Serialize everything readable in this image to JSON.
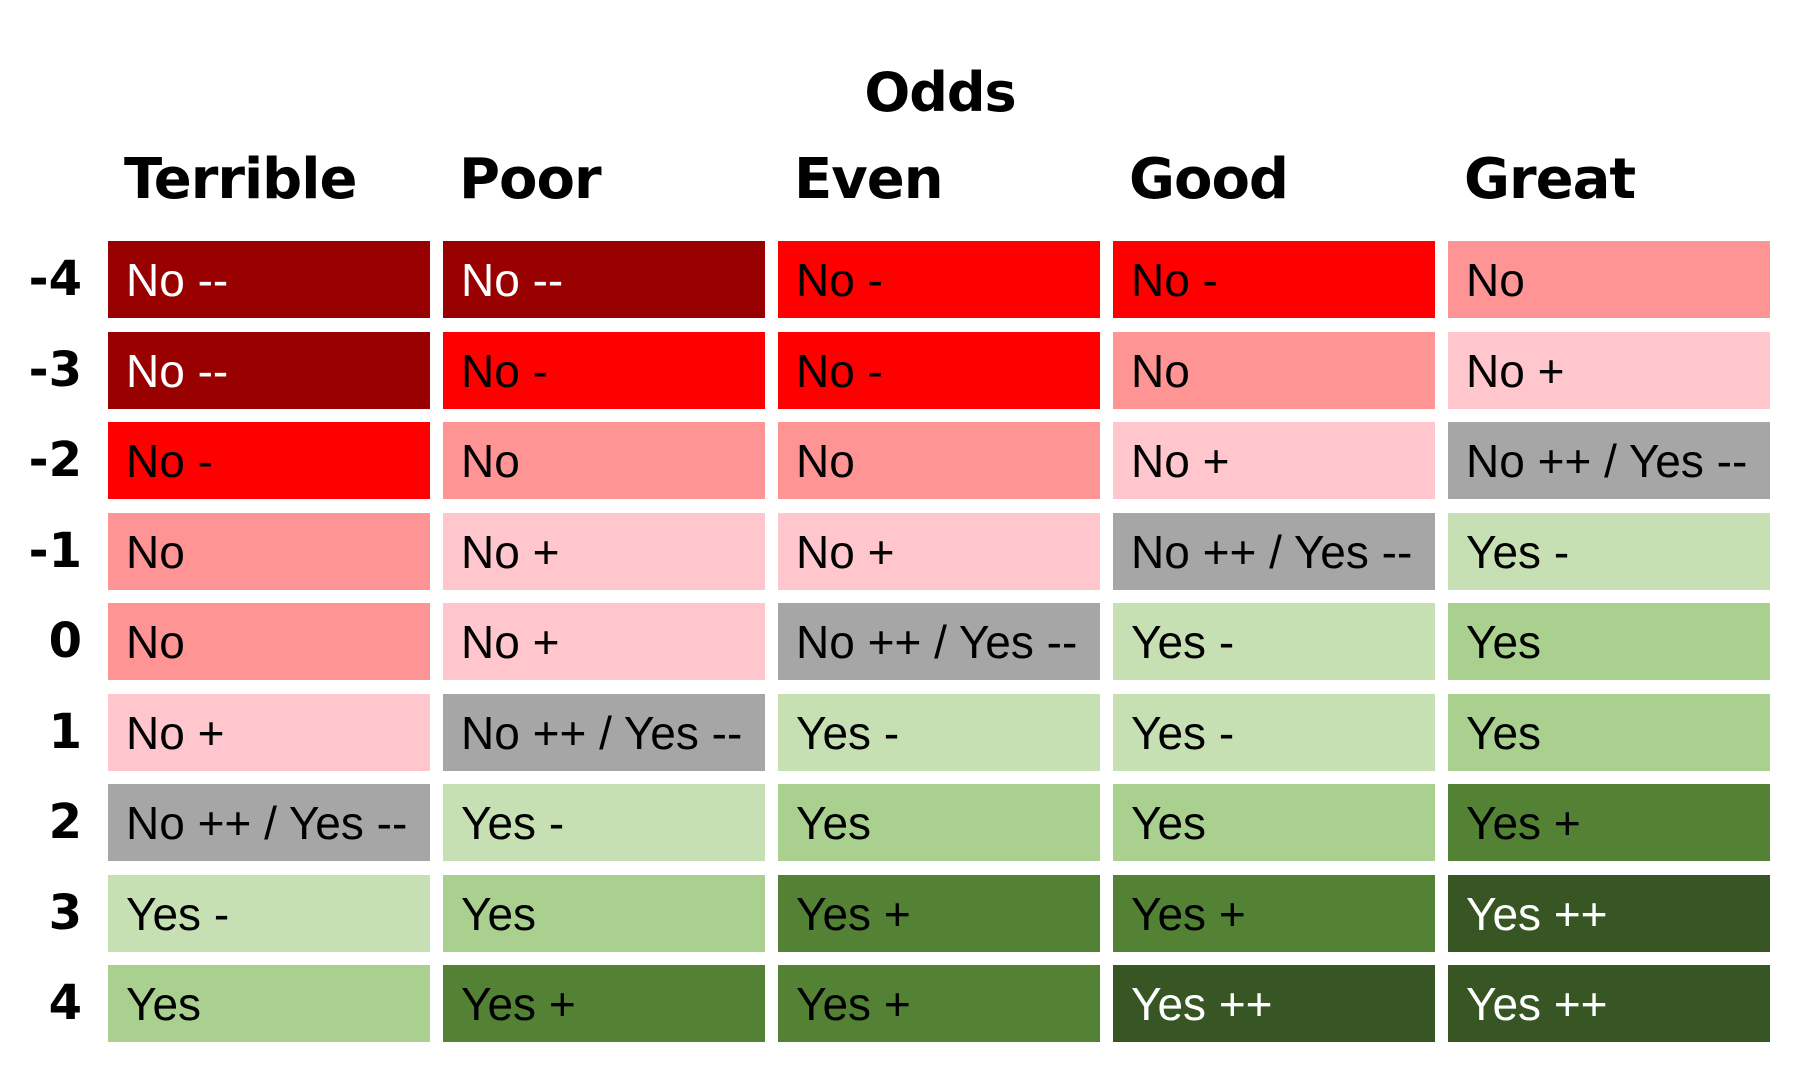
{
  "title": "Odds",
  "columns": [
    "Terrible",
    "Poor",
    "Even",
    "Good",
    "Great"
  ],
  "rows": [
    {
      "label": "-4",
      "cells": [
        "No --",
        "No --",
        "No -",
        "No -",
        "No"
      ]
    },
    {
      "label": "-3",
      "cells": [
        "No --",
        "No -",
        "No -",
        "No",
        "No +"
      ]
    },
    {
      "label": "-2",
      "cells": [
        "No -",
        "No",
        "No",
        "No +",
        "No ++ / Yes --"
      ]
    },
    {
      "label": "-1",
      "cells": [
        "No",
        "No +",
        "No +",
        "No ++ / Yes --",
        "Yes -"
      ]
    },
    {
      "label": "0",
      "cells": [
        "No",
        "No +",
        "No ++ / Yes --",
        "Yes -",
        "Yes"
      ]
    },
    {
      "label": "1",
      "cells": [
        "No +",
        "No ++ / Yes --",
        "Yes -",
        "Yes -",
        "Yes"
      ]
    },
    {
      "label": "2",
      "cells": [
        "No ++ / Yes --",
        "Yes -",
        "Yes",
        "Yes",
        "Yes +"
      ]
    },
    {
      "label": "3",
      "cells": [
        "Yes -",
        "Yes",
        "Yes +",
        "Yes +",
        "Yes ++"
      ]
    },
    {
      "label": "4",
      "cells": [
        "Yes",
        "Yes +",
        "Yes +",
        "Yes ++",
        "Yes ++"
      ]
    }
  ],
  "colors": {
    "No --": {
      "bg": "#990000",
      "fg": "#ffffff"
    },
    "No -": {
      "bg": "#ff0000",
      "fg": "#000000"
    },
    "No": {
      "bg": "#ff9494",
      "fg": "#000000"
    },
    "No +": {
      "bg": "#ffc7cd",
      "fg": "#000000"
    },
    "No ++ / Yes --": {
      "bg": "#a6a6a6",
      "fg": "#000000"
    },
    "Yes -": {
      "bg": "#c6e0b4",
      "fg": "#000000"
    },
    "Yes": {
      "bg": "#a9d08e",
      "fg": "#000000"
    },
    "Yes +": {
      "bg": "#548235",
      "fg": "#000000"
    },
    "Yes ++": {
      "bg": "#375623",
      "fg": "#ffffff"
    }
  }
}
